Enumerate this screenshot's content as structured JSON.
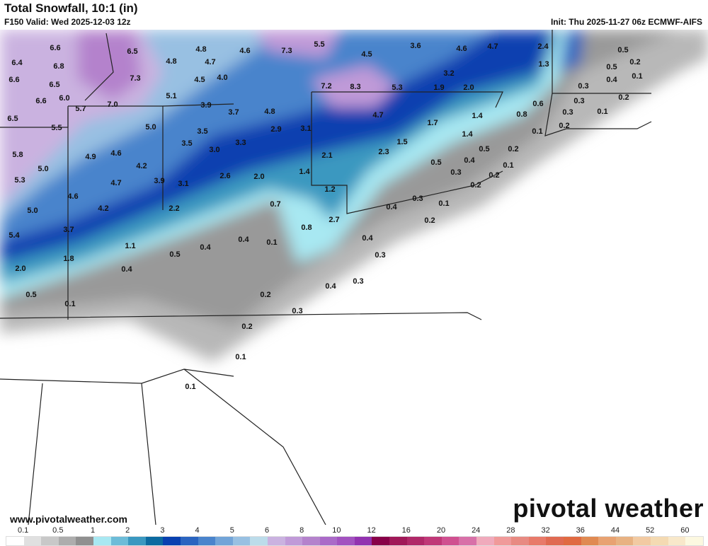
{
  "header": {
    "title": "Total Snowfall, 10:1 (in)",
    "valid": "F150 Valid: Wed 2025-12-03 12z",
    "init": "Init: Thu 2025-11-27 06z ECMWF-AIFS"
  },
  "branding": {
    "logo": "pivotal weather",
    "url": "www.pivotalweather.com"
  },
  "legend": {
    "ticks": [
      "0.1",
      "0.5",
      "1",
      "2",
      "3",
      "4",
      "5",
      "6",
      "8",
      "10",
      "12",
      "16",
      "20",
      "24",
      "28",
      "32",
      "36",
      "44",
      "52",
      "60"
    ],
    "colors": [
      "#ffffff",
      "#e0e0e0",
      "#c8c8c8",
      "#adadad",
      "#909090",
      "#a8e8f2",
      "#6cbcd8",
      "#3a98c0",
      "#0c6aa0",
      "#0840b0",
      "#2a64c0",
      "#4a84cc",
      "#72a4d8",
      "#98c0e2",
      "#bcdcea",
      "#cab2e0",
      "#c09ad8",
      "#b482cc",
      "#aa6ac8",
      "#a252c0",
      "#9232b0",
      "#880048",
      "#a01858",
      "#b02868",
      "#c03878",
      "#d05090",
      "#d870a8",
      "#f0aabc",
      "#f09a9a",
      "#e88a82",
      "#e87a6a",
      "#e06a52",
      "#e06a42",
      "#e08a52",
      "#e8a272",
      "#e8b282",
      "#f2caa2",
      "#f4dab2",
      "#f8e8ca",
      "#fcf8e0"
    ]
  },
  "map_labels": [
    "6.6",
    "6.5",
    "4.8",
    "4.6",
    "7.3",
    "5.5",
    "4.5",
    "3.6",
    "4.6",
    "4.7",
    "2.4",
    "0.5",
    "6.4",
    "6.8",
    "4.8",
    "4.7",
    "1.3",
    "0.5",
    "0.2",
    "6.6",
    "6.5",
    "7.3",
    "4.5",
    "4.0",
    "7.2",
    "8.3",
    "5.3",
    "1.9",
    "2.0",
    "3.2",
    "0.4",
    "0.1",
    "6.6",
    "6.0",
    "5.1",
    "0.3",
    "0.6",
    "0.2",
    "5.7",
    "7.0",
    "3.9",
    "3.7",
    "4.8",
    "0.3",
    "0.8",
    "0.3",
    "0.1",
    "6.5",
    "5.5",
    "5.0",
    "3.5",
    "2.9",
    "3.1",
    "4.7",
    "1.7",
    "1.4",
    "0.2",
    "0.1",
    "1.4",
    "1.5",
    "0.5",
    "0.2",
    "5.8",
    "4.9",
    "4.6",
    "3.5",
    "3.0",
    "3.3",
    "2.1",
    "2.3",
    "0.5",
    "0.4",
    "0.1",
    "5.0",
    "4.2",
    "2.6",
    "2.0",
    "1.4",
    "0.3",
    "0.2",
    "5.3",
    "4.7",
    "3.9",
    "3.1",
    "0.2",
    "4.6",
    "1.2",
    "5.0",
    "4.2",
    "2.2",
    "0.7",
    "0.3",
    "0.4",
    "0.1",
    "5.4",
    "3.7",
    "0.8",
    "2.7",
    "0.2",
    "1.1",
    "0.5",
    "0.4",
    "0.4",
    "0.1",
    "0.4",
    "0.3",
    "1.8",
    "2.0",
    "0.4",
    "0.5",
    "0.1",
    "0.2",
    "0.4",
    "0.3",
    "0.3",
    "0.2",
    "0.1",
    "0.1"
  ]
}
